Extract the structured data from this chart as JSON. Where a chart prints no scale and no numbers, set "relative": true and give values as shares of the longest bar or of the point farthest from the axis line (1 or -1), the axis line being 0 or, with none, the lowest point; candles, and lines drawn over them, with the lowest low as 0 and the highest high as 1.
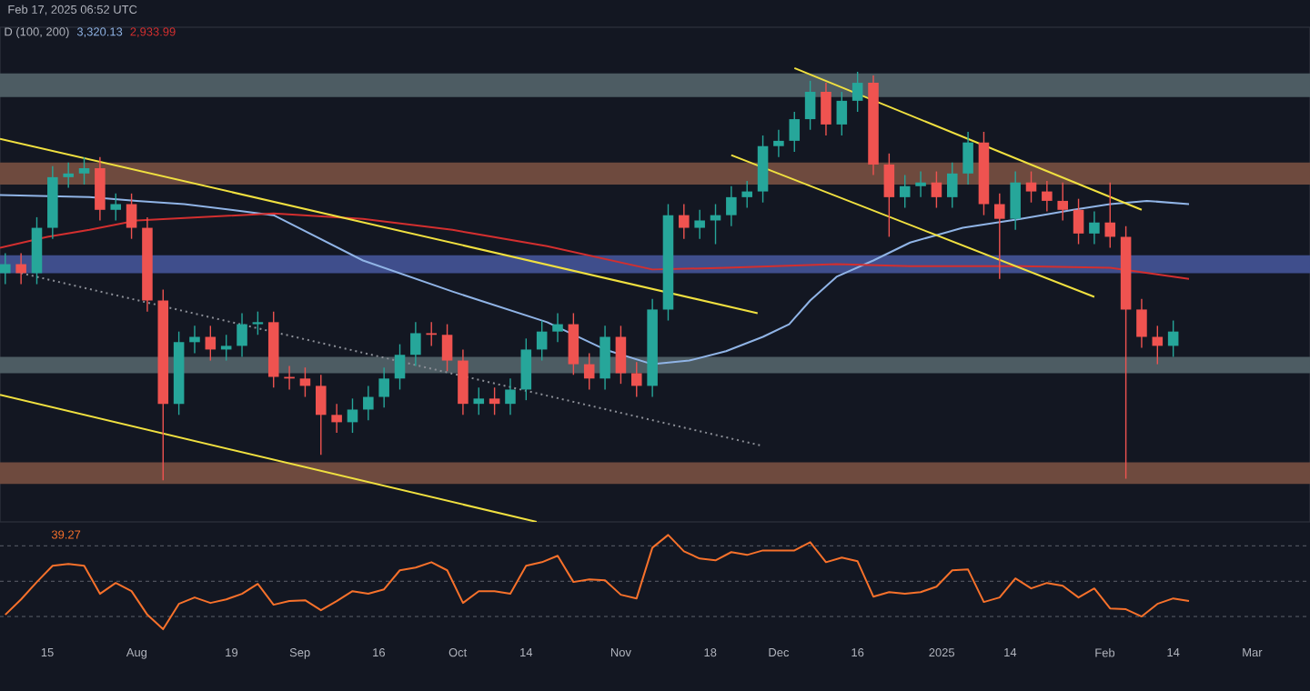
{
  "chart_data": [
    {
      "type": "candlestick",
      "relative": true,
      "tick_labels": false,
      "xlim": [
        "2024-07-06",
        "2025-03-12"
      ],
      "annotations": [
        "Feb 17, 2025 06:52 UTC",
        "D (100, 200)",
        "3,320.13",
        "2,933.99"
      ],
      "x": [
        "2024-07-07",
        "2024-07-10",
        "2024-07-13",
        "2024-07-16",
        "2024-07-19",
        "2024-07-22",
        "2024-07-25",
        "2024-07-28",
        "2024-07-31",
        "2024-08-03",
        "2024-08-06",
        "2024-08-09",
        "2024-08-12",
        "2024-08-15",
        "2024-08-18",
        "2024-08-21",
        "2024-08-24",
        "2024-08-27",
        "2024-08-30",
        "2024-09-02",
        "2024-09-05",
        "2024-09-08",
        "2024-09-11",
        "2024-09-14",
        "2024-09-17",
        "2024-09-20",
        "2024-09-23",
        "2024-09-26",
        "2024-09-29",
        "2024-10-02",
        "2024-10-05",
        "2024-10-08",
        "2024-10-11",
        "2024-10-14",
        "2024-10-17",
        "2024-10-20",
        "2024-10-23",
        "2024-10-26",
        "2024-10-29",
        "2024-11-01",
        "2024-11-04",
        "2024-11-07",
        "2024-11-10",
        "2024-11-13",
        "2024-11-16",
        "2024-11-19",
        "2024-11-22",
        "2024-11-25",
        "2024-11-28",
        "2024-12-01",
        "2024-12-04",
        "2024-12-07",
        "2024-12-10",
        "2024-12-13",
        "2024-12-16",
        "2024-12-19",
        "2024-12-22",
        "2024-12-25",
        "2024-12-28",
        "2024-12-31",
        "2025-01-03",
        "2025-01-06",
        "2025-01-09",
        "2025-01-12",
        "2025-01-15",
        "2025-01-18",
        "2025-01-21",
        "2025-01-24",
        "2025-01-27",
        "2025-01-30",
        "2025-02-02",
        "2025-02-05",
        "2025-02-08",
        "2025-02-11",
        "2025-02-14"
      ],
      "ohlc": [
        [
          0.507,
          0.556,
          0.48,
          0.529
        ],
        [
          0.529,
          0.556,
          0.48,
          0.507
        ],
        [
          0.507,
          0.644,
          0.48,
          0.618
        ],
        [
          0.618,
          0.769,
          0.591,
          0.742
        ],
        [
          0.742,
          0.778,
          0.716,
          0.751
        ],
        [
          0.751,
          0.791,
          0.724,
          0.764
        ],
        [
          0.764,
          0.791,
          0.636,
          0.662
        ],
        [
          0.662,
          0.702,
          0.636,
          0.676
        ],
        [
          0.676,
          0.702,
          0.591,
          0.618
        ],
        [
          0.618,
          0.644,
          0.413,
          0.44
        ],
        [
          0.44,
          0.467,
          0.0,
          0.187
        ],
        [
          0.187,
          0.364,
          0.16,
          0.338
        ],
        [
          0.338,
          0.378,
          0.311,
          0.351
        ],
        [
          0.351,
          0.378,
          0.293,
          0.32
        ],
        [
          0.32,
          0.356,
          0.293,
          0.329
        ],
        [
          0.329,
          0.409,
          0.302,
          0.382
        ],
        [
          0.382,
          0.413,
          0.356,
          0.387
        ],
        [
          0.387,
          0.413,
          0.227,
          0.253
        ],
        [
          0.253,
          0.28,
          0.222,
          0.249
        ],
        [
          0.249,
          0.276,
          0.204,
          0.231
        ],
        [
          0.231,
          0.258,
          0.062,
          0.16
        ],
        [
          0.16,
          0.187,
          0.116,
          0.142
        ],
        [
          0.142,
          0.2,
          0.116,
          0.173
        ],
        [
          0.173,
          0.231,
          0.147,
          0.204
        ],
        [
          0.204,
          0.276,
          0.178,
          0.249
        ],
        [
          0.249,
          0.333,
          0.222,
          0.307
        ],
        [
          0.307,
          0.387,
          0.28,
          0.36
        ],
        [
          0.36,
          0.387,
          0.329,
          0.356
        ],
        [
          0.356,
          0.382,
          0.267,
          0.293
        ],
        [
          0.293,
          0.32,
          0.16,
          0.187
        ],
        [
          0.187,
          0.227,
          0.16,
          0.2
        ],
        [
          0.2,
          0.227,
          0.16,
          0.187
        ],
        [
          0.187,
          0.249,
          0.16,
          0.222
        ],
        [
          0.222,
          0.347,
          0.196,
          0.32
        ],
        [
          0.32,
          0.391,
          0.293,
          0.364
        ],
        [
          0.364,
          0.409,
          0.338,
          0.382
        ],
        [
          0.382,
          0.409,
          0.258,
          0.284
        ],
        [
          0.284,
          0.311,
          0.222,
          0.249
        ],
        [
          0.249,
          0.378,
          0.222,
          0.351
        ],
        [
          0.351,
          0.378,
          0.236,
          0.262
        ],
        [
          0.262,
          0.289,
          0.204,
          0.231
        ],
        [
          0.231,
          0.444,
          0.204,
          0.418
        ],
        [
          0.418,
          0.676,
          0.391,
          0.649
        ],
        [
          0.649,
          0.676,
          0.591,
          0.618
        ],
        [
          0.618,
          0.662,
          0.591,
          0.636
        ],
        [
          0.636,
          0.676,
          0.578,
          0.649
        ],
        [
          0.649,
          0.72,
          0.622,
          0.693
        ],
        [
          0.693,
          0.733,
          0.667,
          0.707
        ],
        [
          0.707,
          0.844,
          0.68,
          0.818
        ],
        [
          0.818,
          0.858,
          0.791,
          0.831
        ],
        [
          0.831,
          0.902,
          0.804,
          0.884
        ],
        [
          0.884,
          0.978,
          0.858,
          0.951
        ],
        [
          0.951,
          0.973,
          0.844,
          0.871
        ],
        [
          0.871,
          0.951,
          0.844,
          0.929
        ],
        [
          0.929,
          1.0,
          0.902,
          0.973
        ],
        [
          0.973,
          0.991,
          0.747,
          0.773
        ],
        [
          0.773,
          0.8,
          0.596,
          0.693
        ],
        [
          0.693,
          0.747,
          0.667,
          0.72
        ],
        [
          0.72,
          0.756,
          0.693,
          0.729
        ],
        [
          0.729,
          0.756,
          0.667,
          0.693
        ],
        [
          0.693,
          0.778,
          0.667,
          0.751
        ],
        [
          0.751,
          0.853,
          0.724,
          0.827
        ],
        [
          0.827,
          0.853,
          0.649,
          0.676
        ],
        [
          0.676,
          0.702,
          0.493,
          0.64
        ],
        [
          0.64,
          0.756,
          0.613,
          0.729
        ],
        [
          0.729,
          0.756,
          0.68,
          0.707
        ],
        [
          0.707,
          0.733,
          0.658,
          0.684
        ],
        [
          0.684,
          0.729,
          0.636,
          0.662
        ],
        [
          0.662,
          0.689,
          0.578,
          0.604
        ],
        [
          0.604,
          0.658,
          0.578,
          0.631
        ],
        [
          0.631,
          0.729,
          0.569,
          0.596
        ],
        [
          0.596,
          0.622,
          0.004,
          0.418
        ],
        [
          0.418,
          0.444,
          0.324,
          0.351
        ],
        [
          0.351,
          0.378,
          0.284,
          0.329
        ],
        [
          0.329,
          0.391,
          0.302,
          0.364
        ]
      ],
      "colors": [
        "#26a69a",
        "#ef5350",
        "#26a69a",
        "#26a69a",
        "#26a69a",
        "#26a69a",
        "#ef5350",
        "#26a69a",
        "#ef5350",
        "#ef5350",
        "#ef5350",
        "#26a69a",
        "#26a69a",
        "#ef5350",
        "#26a69a",
        "#26a69a",
        "#26a69a",
        "#ef5350",
        "#ef5350",
        "#ef5350",
        "#ef5350",
        "#ef5350",
        "#26a69a",
        "#26a69a",
        "#26a69a",
        "#26a69a",
        "#26a69a",
        "#ef5350",
        "#ef5350",
        "#ef5350",
        "#26a69a",
        "#ef5350",
        "#26a69a",
        "#26a69a",
        "#26a69a",
        "#26a69a",
        "#ef5350",
        "#ef5350",
        "#26a69a",
        "#ef5350",
        "#ef5350",
        "#26a69a",
        "#26a69a",
        "#ef5350",
        "#26a69a",
        "#26a69a",
        "#26a69a",
        "#26a69a",
        "#26a69a",
        "#26a69a",
        "#26a69a",
        "#26a69a",
        "#ef5350",
        "#26a69a",
        "#26a69a",
        "#ef5350",
        "#ef5350",
        "#26a69a",
        "#26a69a",
        "#ef5350",
        "#26a69a",
        "#26a69a",
        "#ef5350",
        "#ef5350",
        "#26a69a",
        "#ef5350",
        "#ef5350",
        "#ef5350",
        "#ef5350",
        "#26a69a",
        "#ef5350",
        "#ef5350",
        "#ef5350",
        "#ef5350",
        "#26a69a"
      ],
      "series": [
        {
          "type": "line",
          "color": "#90b4e6",
          "x": [
            "2024-07-06",
            "2024-07-23",
            "2024-08-01",
            "2024-08-10",
            "2024-08-27",
            "2024-09-13",
            "2024-09-30",
            "2024-10-18",
            "2024-10-29",
            "2024-11-07",
            "2024-11-14",
            "2024-11-21",
            "2024-11-28",
            "2024-12-03",
            "2024-12-07",
            "2024-12-12",
            "2024-12-19",
            "2024-12-26",
            "2025-01-05",
            "2025-01-16",
            "2025-01-26",
            "2025-02-02",
            "2025-02-09",
            "2025-02-17"
          ],
          "values": [
            0.698,
            0.693,
            0.684,
            0.676,
            0.649,
            0.538,
            0.462,
            0.387,
            0.32,
            0.284,
            0.293,
            0.316,
            0.351,
            0.382,
            0.44,
            0.498,
            0.538,
            0.582,
            0.618,
            0.64,
            0.662,
            0.676,
            0.684,
            0.676
          ]
        },
        {
          "type": "line",
          "color": "#d32f2f",
          "x": [
            "2024-07-06",
            "2024-07-15",
            "2024-07-23",
            "2024-08-01",
            "2024-08-27",
            "2024-09-13",
            "2024-09-30",
            "2024-10-18",
            "2024-11-07",
            "2024-11-21",
            "2024-12-12",
            "2024-12-26",
            "2025-01-16",
            "2025-02-02",
            "2025-02-17"
          ],
          "values": [
            0.569,
            0.596,
            0.613,
            0.636,
            0.653,
            0.64,
            0.613,
            0.573,
            0.516,
            0.52,
            0.529,
            0.524,
            0.524,
            0.52,
            0.493
          ]
        },
        {
          "type": "line",
          "color": "#f0e040",
          "x": [
            "2024-07-06",
            "2024-11-27"
          ],
          "values": [
            0.836,
            0.409
          ]
        },
        {
          "type": "line",
          "color": "#f0e040",
          "x": [
            "2024-07-06",
            "2024-10-16"
          ],
          "values": [
            0.209,
            -0.102
          ]
        },
        {
          "type": "line",
          "color": "#8c8f97",
          "line_style": "dotted",
          "x": [
            "2024-07-10",
            "2024-11-28"
          ],
          "values": [
            0.507,
            0.084
          ]
        },
        {
          "type": "line",
          "color": "#f0e040",
          "x": [
            "2024-12-04",
            "2025-02-08"
          ],
          "values": [
            1.009,
            0.662
          ]
        },
        {
          "type": "line",
          "color": "#f0e040",
          "x": [
            "2024-11-22",
            "2025-01-30"
          ],
          "values": [
            0.796,
            0.449
          ]
        }
      ],
      "bands": [
        {
          "axis": "y",
          "from": 0.938,
          "to": 0.996,
          "color": "#4d5c63"
        },
        {
          "axis": "y",
          "from": 0.724,
          "to": 0.778,
          "color": "#6e4a3e"
        },
        {
          "axis": "y",
          "from": 0.507,
          "to": 0.551,
          "color": "#3f4e8c"
        },
        {
          "axis": "y",
          "from": 0.262,
          "to": 0.302,
          "color": "#4d5c63"
        },
        {
          "axis": "y",
          "from": -0.009,
          "to": 0.044,
          "color": "#6e4a3e"
        }
      ]
    },
    {
      "type": "line",
      "relative": true,
      "xlim": [
        "2024-07-06",
        "2025-03-12"
      ],
      "xticks": [
        {
          "value": "2024-07-15",
          "label": "15"
        },
        {
          "value": "2024-08-01",
          "label": "Aug"
        },
        {
          "value": "2024-08-19",
          "label": "19"
        },
        {
          "value": "2024-09-01",
          "label": "Sep"
        },
        {
          "value": "2024-09-16",
          "label": "16"
        },
        {
          "value": "2024-10-01",
          "label": "Oct"
        },
        {
          "value": "2024-10-14",
          "label": "14"
        },
        {
          "value": "2024-11-01",
          "label": "Nov"
        },
        {
          "value": "2024-11-18",
          "label": "18"
        },
        {
          "value": "2024-12-01",
          "label": "Dec"
        },
        {
          "value": "2024-12-16",
          "label": "16"
        },
        {
          "value": "2025-01-01",
          "label": "2025"
        },
        {
          "value": "2025-01-14",
          "label": "14"
        },
        {
          "value": "2025-02-01",
          "label": "Feb"
        },
        {
          "value": "2025-02-14",
          "label": "14"
        },
        {
          "value": "2025-03-01",
          "label": "Mar"
        }
      ],
      "annotations": [
        "39.27"
      ],
      "x": [
        "2024-07-07",
        "2024-07-10",
        "2024-07-13",
        "2024-07-16",
        "2024-07-19",
        "2024-07-22",
        "2024-07-25",
        "2024-07-28",
        "2024-07-31",
        "2024-08-03",
        "2024-08-06",
        "2024-08-09",
        "2024-08-12",
        "2024-08-15",
        "2024-08-18",
        "2024-08-21",
        "2024-08-24",
        "2024-08-27",
        "2024-08-30",
        "2024-09-02",
        "2024-09-05",
        "2024-09-08",
        "2024-09-11",
        "2024-09-14",
        "2024-09-17",
        "2024-09-20",
        "2024-09-23",
        "2024-09-26",
        "2024-09-29",
        "2024-10-02",
        "2024-10-05",
        "2024-10-08",
        "2024-10-11",
        "2024-10-14",
        "2024-10-17",
        "2024-10-20",
        "2024-10-23",
        "2024-10-26",
        "2024-10-29",
        "2024-11-01",
        "2024-11-04",
        "2024-11-07",
        "2024-11-10",
        "2024-11-13",
        "2024-11-16",
        "2024-11-19",
        "2024-11-22",
        "2024-11-25",
        "2024-11-28",
        "2024-12-01",
        "2024-12-04",
        "2024-12-07",
        "2024-12-10",
        "2024-12-13",
        "2024-12-16",
        "2024-12-19",
        "2024-12-22",
        "2024-12-25",
        "2024-12-28",
        "2024-12-31",
        "2025-01-03",
        "2025-01-06",
        "2025-01-09",
        "2025-01-12",
        "2025-01-15",
        "2025-01-18",
        "2025-01-21",
        "2025-01-24",
        "2025-01-27",
        "2025-01-30",
        "2025-02-02",
        "2025-02-05",
        "2025-02-08",
        "2025-02-11",
        "2025-02-14",
        "2025-02-17"
      ],
      "series": [
        {
          "color": "#f7712b",
          "values": [
            0.154,
            0.317,
            0.501,
            0.673,
            0.693,
            0.673,
            0.376,
            0.491,
            0.404,
            0.154,
            0.0,
            0.269,
            0.337,
            0.279,
            0.317,
            0.376,
            0.481,
            0.26,
            0.299,
            0.308,
            0.202,
            0.299,
            0.404,
            0.376,
            0.423,
            0.625,
            0.654,
            0.711,
            0.625,
            0.279,
            0.404,
            0.404,
            0.376,
            0.673,
            0.711,
            0.779,
            0.501,
            0.529,
            0.519,
            0.366,
            0.327,
            0.865,
            1.0,
            0.826,
            0.75,
            0.731,
            0.818,
            0.788,
            0.836,
            0.836,
            0.836,
            0.923,
            0.711,
            0.76,
            0.721,
            0.346,
            0.394,
            0.376,
            0.394,
            0.452,
            0.625,
            0.634,
            0.289,
            0.337,
            0.539,
            0.433,
            0.491,
            0.461,
            0.337,
            0.433,
            0.221,
            0.212,
            0.135,
            0.269,
            0.327,
            0.299
          ]
        }
      ],
      "ref_lines": [
        {
          "axis": "y",
          "value": 0.885,
          "color": "#5d606b",
          "line_style": "dashed"
        },
        {
          "axis": "y",
          "value": 0.509,
          "color": "#5d606b",
          "line_style": "dashed"
        },
        {
          "axis": "y",
          "value": 0.135,
          "color": "#5d606b",
          "line_style": "dashed"
        }
      ]
    }
  ]
}
